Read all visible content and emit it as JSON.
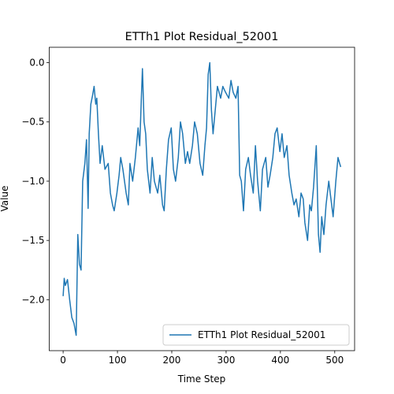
{
  "chart_data": {
    "type": "line",
    "title": "ETTh1 Plot Residual_52001",
    "x_label": "Time Step",
    "y_label": "Value",
    "x": [
      0,
      2,
      4,
      8,
      12,
      16,
      20,
      24,
      27,
      30,
      33,
      36,
      40,
      43,
      46,
      48,
      51,
      54,
      57,
      60,
      62,
      65,
      68,
      72,
      77,
      83,
      87,
      91,
      94,
      99,
      103,
      106,
      110,
      116,
      120,
      123,
      128,
      133,
      138,
      141,
      144,
      146,
      149,
      152,
      155,
      160,
      164,
      168,
      174,
      178,
      183,
      186,
      190,
      194,
      199,
      203,
      207,
      212,
      216,
      220,
      225,
      229,
      233,
      238,
      242,
      247,
      252,
      257,
      261,
      264,
      267,
      270,
      273,
      276,
      280,
      284,
      290,
      294,
      299,
      305,
      309,
      313,
      318,
      322,
      325,
      328,
      332,
      336,
      341,
      345,
      350,
      354,
      358,
      363,
      367,
      373,
      377,
      381,
      386,
      390,
      394,
      399,
      403,
      407,
      412,
      416,
      421,
      425,
      429,
      434,
      438,
      442,
      445,
      450,
      454,
      457,
      461,
      466,
      470,
      473,
      476,
      480,
      484,
      489,
      493,
      497,
      502,
      506,
      509,
      511
    ],
    "series": [
      {
        "name": "ETTh1 Plot Residual_52001",
        "color": "#1f77b4",
        "values": [
          -1.97,
          -1.82,
          -1.88,
          -1.83,
          -2.0,
          -2.15,
          -2.2,
          -2.3,
          -1.45,
          -1.7,
          -1.75,
          -1.0,
          -0.85,
          -0.65,
          -1.23,
          -0.6,
          -0.35,
          -0.28,
          -0.2,
          -0.35,
          -0.3,
          -0.6,
          -0.85,
          -0.7,
          -0.9,
          -0.85,
          -1.1,
          -1.2,
          -1.25,
          -1.1,
          -0.95,
          -0.8,
          -0.9,
          -1.1,
          -1.2,
          -0.85,
          -1.0,
          -0.8,
          -0.55,
          -0.7,
          -0.3,
          -0.05,
          -0.5,
          -0.6,
          -0.9,
          -1.1,
          -0.8,
          -1.0,
          -1.1,
          -0.95,
          -1.2,
          -1.25,
          -0.9,
          -0.65,
          -0.55,
          -0.9,
          -1.0,
          -0.8,
          -0.5,
          -0.6,
          -0.85,
          -0.75,
          -0.85,
          -0.7,
          -0.5,
          -0.6,
          -0.85,
          -0.95,
          -0.7,
          -0.55,
          -0.1,
          0.0,
          -0.4,
          -0.6,
          -0.4,
          -0.2,
          -0.3,
          -0.2,
          -0.25,
          -0.3,
          -0.15,
          -0.25,
          -0.3,
          -0.2,
          -0.95,
          -1.0,
          -1.25,
          -0.9,
          -0.8,
          -0.95,
          -1.1,
          -0.7,
          -1.0,
          -1.25,
          -0.9,
          -0.8,
          -1.05,
          -0.95,
          -0.8,
          -0.6,
          -0.55,
          -0.75,
          -0.6,
          -0.8,
          -0.7,
          -0.95,
          -1.1,
          -1.2,
          -1.15,
          -1.3,
          -1.1,
          -1.15,
          -1.35,
          -1.5,
          -1.2,
          -1.25,
          -1.05,
          -0.7,
          -1.45,
          -1.6,
          -1.3,
          -1.45,
          -1.2,
          -1.0,
          -1.15,
          -1.3,
          -1.0,
          -0.8,
          -0.85,
          -0.88
        ]
      }
    ],
    "xlim": [
      -25.55,
      536.55
    ],
    "xticks": [
      0,
      100,
      200,
      300,
      400,
      500
    ],
    "ylim": [
      -2.43,
      0.13
    ],
    "yticks": [
      {
        "value": 0.0,
        "label": "0.0"
      },
      {
        "value": -0.5,
        "label": "−0.5"
      },
      {
        "value": -1.0,
        "label": "−1.0"
      },
      {
        "value": -1.5,
        "label": "−1.5"
      },
      {
        "value": -2.0,
        "label": "−2.0"
      }
    ],
    "grid": false,
    "legend": "lower right"
  }
}
